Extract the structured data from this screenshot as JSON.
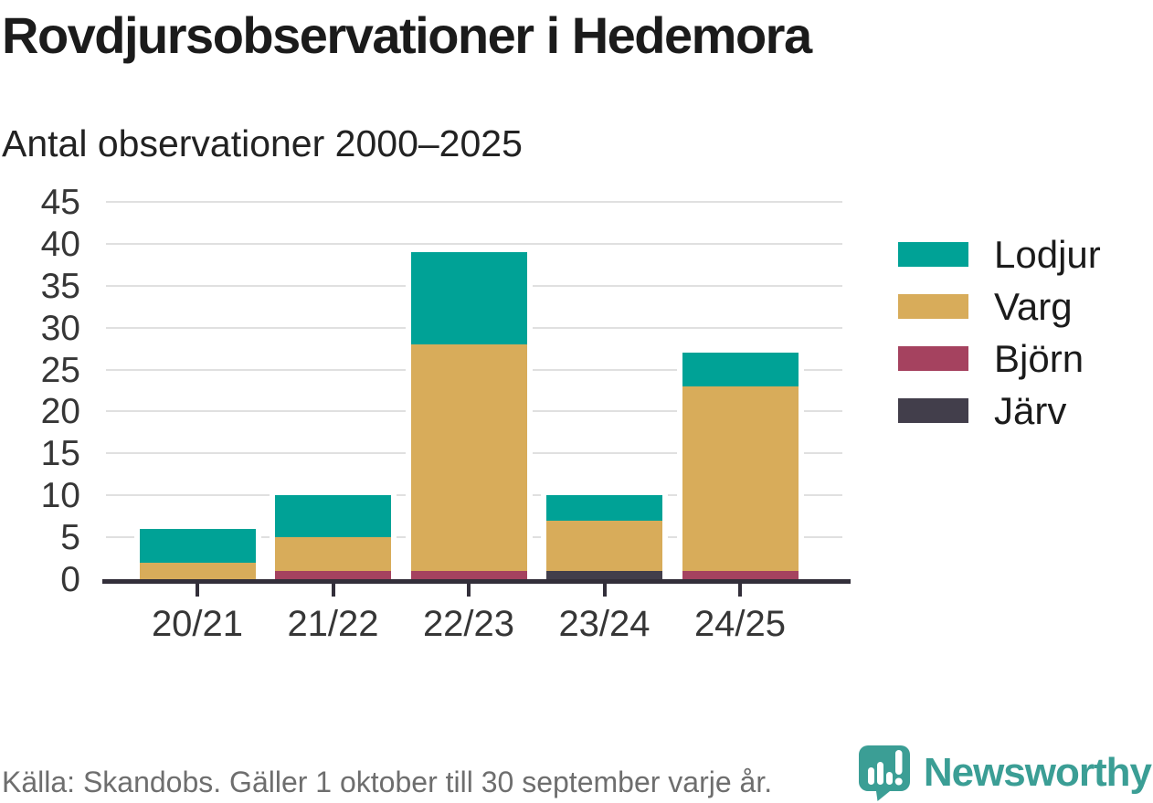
{
  "header": {
    "title": "Rovdjursobservationer i Hedemora",
    "subtitle": "Antal observationer 2000–2025"
  },
  "chart_data": {
    "type": "bar",
    "stacked": true,
    "title": "Rovdjursobservationer i Hedemora",
    "subtitle": "Antal observationer 2000–2025",
    "categories": [
      "20/21",
      "21/22",
      "22/23",
      "23/24",
      "24/25"
    ],
    "series": [
      {
        "name": "Lodjur",
        "color": "#00a296",
        "values": [
          4,
          5,
          11,
          3,
          4
        ]
      },
      {
        "name": "Varg",
        "color": "#d8ac5a",
        "values": [
          2,
          4,
          27,
          6,
          22
        ]
      },
      {
        "name": "Björn",
        "color": "#a5425f",
        "values": [
          0,
          1,
          1,
          0,
          1
        ]
      },
      {
        "name": "Järv",
        "color": "#423e4b",
        "values": [
          0,
          0,
          0,
          1,
          0
        ]
      }
    ],
    "stack_order_bottom_to_top": [
      "Järv",
      "Björn",
      "Varg",
      "Lodjur"
    ],
    "totals": [
      6,
      10,
      39,
      10,
      27
    ],
    "xlabel": "",
    "ylabel": "",
    "ylim": [
      0,
      45
    ],
    "ytick_step": 5,
    "grid": true,
    "legend_position": "right",
    "legend_order": [
      "Lodjur",
      "Varg",
      "Björn",
      "Järv"
    ],
    "axis_color": "#332f3a",
    "gridline_color": "#e0e0e0"
  },
  "footer": {
    "source": "Källa: Skandobs. Gäller 1 oktober till 30 september varje år.",
    "brand": "Newsworthy",
    "brand_color": "#3b9e95",
    "logo_icon": "newsworthy-bubble-barchart-icon"
  }
}
